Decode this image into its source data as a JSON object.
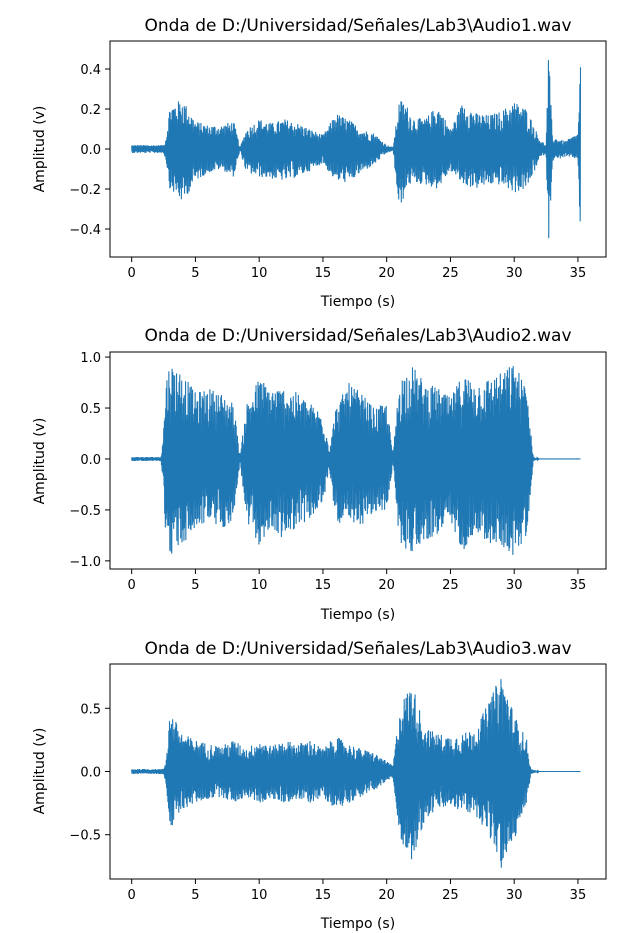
{
  "chart_data": [
    {
      "type": "line",
      "title": "Onda de D:/Universidad/Señales/Lab3\\Audio1.wav",
      "xlabel": "Tiempo (s)",
      "ylabel": "Amplitud (v)",
      "xlim": [
        -1.7,
        37.2
      ],
      "ylim": [
        -0.54,
        0.54
      ],
      "xticks": [
        0,
        5,
        10,
        15,
        20,
        25,
        30,
        35
      ],
      "xtick_labels": [
        "0",
        "5",
        "10",
        "15",
        "20",
        "25",
        "30",
        "35"
      ],
      "yticks": [
        0.4,
        0.2,
        0.0,
        -0.2,
        -0.4
      ],
      "ytick_labels": [
        "0.4",
        "0.2",
        "0.0",
        "−0.2",
        "−0.4"
      ],
      "grid": false,
      "line_color": "#1f77b4",
      "envelope": {
        "t": [
          0.0,
          2.5,
          2.7,
          3.0,
          4.0,
          5.0,
          6.0,
          7.0,
          8.0,
          8.5,
          9.0,
          10.0,
          11.0,
          12.0,
          13.0,
          14.0,
          15.0,
          15.5,
          16.0,
          17.0,
          18.0,
          19.0,
          20.0,
          20.5,
          21.0,
          21.5,
          22.0,
          23.0,
          24.0,
          25.0,
          26.0,
          27.0,
          28.0,
          29.0,
          30.0,
          31.0,
          32.0,
          32.5,
          32.7,
          33.0,
          34.0,
          35.0,
          35.2
        ],
        "upper": [
          0.02,
          0.02,
          0.06,
          0.22,
          0.25,
          0.14,
          0.12,
          0.12,
          0.14,
          0.01,
          0.1,
          0.15,
          0.13,
          0.15,
          0.13,
          0.1,
          0.07,
          0.12,
          0.18,
          0.15,
          0.1,
          0.08,
          0.02,
          0.01,
          0.25,
          0.23,
          0.16,
          0.15,
          0.22,
          0.1,
          0.24,
          0.18,
          0.17,
          0.19,
          0.24,
          0.2,
          0.05,
          0.02,
          0.49,
          0.06,
          0.04,
          0.08,
          0.45
        ],
        "lower": [
          -0.02,
          -0.02,
          -0.06,
          -0.2,
          -0.27,
          -0.16,
          -0.12,
          -0.1,
          -0.14,
          -0.01,
          -0.12,
          -0.14,
          -0.15,
          -0.16,
          -0.14,
          -0.11,
          -0.07,
          -0.12,
          -0.16,
          -0.17,
          -0.12,
          -0.08,
          -0.02,
          -0.01,
          -0.33,
          -0.2,
          -0.17,
          -0.18,
          -0.2,
          -0.11,
          -0.18,
          -0.2,
          -0.18,
          -0.18,
          -0.22,
          -0.2,
          -0.05,
          -0.02,
          -0.49,
          -0.06,
          -0.04,
          -0.05,
          -0.45
        ]
      }
    },
    {
      "type": "line",
      "title": "Onda de D:/Universidad/Señales/Lab3\\Audio2.wav",
      "xlabel": "Tiempo (s)",
      "ylabel": "Amplitud (v)",
      "xlim": [
        -1.7,
        37.2
      ],
      "ylim": [
        -1.08,
        1.05
      ],
      "xticks": [
        0,
        5,
        10,
        15,
        20,
        25,
        30,
        35
      ],
      "xtick_labels": [
        "0",
        "5",
        "10",
        "15",
        "20",
        "25",
        "30",
        "35"
      ],
      "yticks": [
        1.0,
        0.5,
        0.0,
        -0.5,
        -1.0
      ],
      "ytick_labels": [
        "1.0",
        "0.5",
        "0.0",
        "−0.5",
        "−1.0"
      ],
      "grid": false,
      "line_color": "#1f77b4",
      "envelope": {
        "t": [
          0.0,
          2.3,
          2.5,
          2.7,
          3.0,
          4.0,
          5.0,
          6.0,
          7.0,
          8.0,
          8.5,
          9.0,
          10.0,
          11.0,
          12.0,
          13.0,
          14.0,
          15.0,
          15.5,
          16.0,
          17.0,
          18.0,
          19.0,
          20.0,
          20.5,
          21.0,
          22.0,
          23.0,
          24.0,
          25.0,
          26.0,
          27.0,
          28.0,
          29.0,
          30.0,
          31.0,
          31.5,
          32.0,
          35.2
        ],
        "upper": [
          0.02,
          0.02,
          0.3,
          0.8,
          0.95,
          0.85,
          0.65,
          0.7,
          0.65,
          0.55,
          0.02,
          0.55,
          0.8,
          0.7,
          0.7,
          0.65,
          0.55,
          0.45,
          0.1,
          0.5,
          0.75,
          0.65,
          0.5,
          0.55,
          0.05,
          0.8,
          0.92,
          0.75,
          0.7,
          0.6,
          0.85,
          0.75,
          0.8,
          0.85,
          0.95,
          0.7,
          0.02,
          0.0,
          0.0
        ],
        "lower": [
          -0.02,
          -0.02,
          -0.3,
          -0.85,
          -0.95,
          -0.85,
          -0.7,
          -0.6,
          -0.7,
          -0.6,
          -0.02,
          -0.65,
          -0.85,
          -0.7,
          -0.8,
          -0.65,
          -0.6,
          -0.45,
          -0.1,
          -0.6,
          -0.7,
          -0.65,
          -0.55,
          -0.5,
          -0.05,
          -0.85,
          -0.92,
          -0.8,
          -0.75,
          -0.65,
          -0.9,
          -0.7,
          -0.85,
          -0.85,
          -0.97,
          -0.75,
          -0.02,
          0.0,
          0.0
        ]
      }
    },
    {
      "type": "line",
      "title": "Onda de D:/Universidad/Señales/Lab3\\Audio3.wav",
      "xlabel": "Tiempo (s)",
      "ylabel": "Amplitud (v)",
      "xlim": [
        -1.7,
        37.2
      ],
      "ylim": [
        -0.85,
        0.85
      ],
      "xticks": [
        0,
        5,
        10,
        15,
        20,
        25,
        30,
        35
      ],
      "xtick_labels": [
        "0",
        "5",
        "10",
        "15",
        "20",
        "25",
        "30",
        "35"
      ],
      "yticks": [
        0.5,
        0.0,
        -0.5
      ],
      "ytick_labels": [
        "0.5",
        "0.0",
        "−0.5"
      ],
      "grid": false,
      "line_color": "#1f77b4",
      "envelope": {
        "t": [
          0.0,
          2.5,
          2.7,
          3.0,
          4.0,
          5.0,
          6.0,
          7.0,
          8.0,
          9.0,
          10.0,
          11.0,
          12.0,
          13.0,
          14.0,
          15.0,
          16.0,
          17.0,
          18.0,
          19.0,
          20.0,
          20.5,
          21.0,
          21.5,
          22.0,
          23.0,
          24.0,
          25.0,
          26.0,
          27.0,
          28.0,
          29.0,
          30.0,
          31.0,
          31.3,
          32.0,
          35.2
        ],
        "upper": [
          0.02,
          0.02,
          0.1,
          0.48,
          0.3,
          0.25,
          0.22,
          0.2,
          0.25,
          0.18,
          0.25,
          0.2,
          0.25,
          0.22,
          0.25,
          0.18,
          0.28,
          0.22,
          0.18,
          0.15,
          0.08,
          0.05,
          0.5,
          0.62,
          0.7,
          0.35,
          0.3,
          0.28,
          0.3,
          0.35,
          0.55,
          0.78,
          0.45,
          0.25,
          0.02,
          0.0,
          0.0
        ],
        "lower": [
          -0.02,
          -0.02,
          -0.1,
          -0.48,
          -0.3,
          -0.25,
          -0.22,
          -0.2,
          -0.25,
          -0.2,
          -0.25,
          -0.22,
          -0.25,
          -0.22,
          -0.25,
          -0.2,
          -0.3,
          -0.25,
          -0.2,
          -0.15,
          -0.08,
          -0.05,
          -0.55,
          -0.6,
          -0.72,
          -0.38,
          -0.3,
          -0.28,
          -0.32,
          -0.35,
          -0.5,
          -0.78,
          -0.55,
          -0.25,
          -0.02,
          0.0,
          0.0
        ]
      }
    }
  ]
}
